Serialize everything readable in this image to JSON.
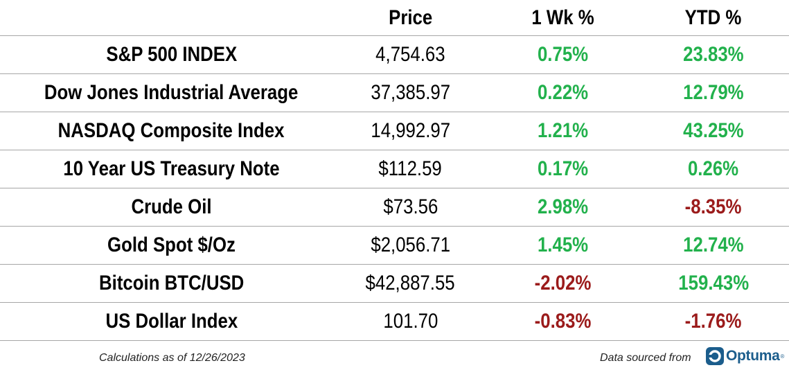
{
  "columns": {
    "price": "Price",
    "wk": "1 Wk %",
    "ytd": "YTD %"
  },
  "rows": [
    {
      "name": "S&P 500 INDEX",
      "price": "4,754.63",
      "wk": "0.75%",
      "ytd": "23.83%",
      "wk_dir": "pos",
      "ytd_dir": "pos"
    },
    {
      "name": "Dow Jones Industrial Average",
      "price": "37,385.97",
      "wk": "0.22%",
      "ytd": "12.79%",
      "wk_dir": "pos",
      "ytd_dir": "pos"
    },
    {
      "name": "NASDAQ Composite Index",
      "price": "14,992.97",
      "wk": "1.21%",
      "ytd": "43.25%",
      "wk_dir": "pos",
      "ytd_dir": "pos"
    },
    {
      "name": "10 Year US Treasury Note",
      "price": "$112.59",
      "wk": "0.17%",
      "ytd": "0.26%",
      "wk_dir": "pos",
      "ytd_dir": "pos"
    },
    {
      "name": "Crude Oil",
      "price": "$73.56",
      "wk": "2.98%",
      "ytd": "-8.35%",
      "wk_dir": "pos",
      "ytd_dir": "neg"
    },
    {
      "name": "Gold Spot $/Oz",
      "price": "$2,056.71",
      "wk": "1.45%",
      "ytd": "12.74%",
      "wk_dir": "pos",
      "ytd_dir": "pos"
    },
    {
      "name": "Bitcoin BTC/USD",
      "price": "$42,887.55",
      "wk": "-2.02%",
      "ytd": "159.43%",
      "wk_dir": "neg",
      "ytd_dir": "pos"
    },
    {
      "name": "US Dollar Index",
      "price": "101.70",
      "wk": "-0.83%",
      "ytd": "-1.76%",
      "wk_dir": "neg",
      "ytd_dir": "neg"
    }
  ],
  "colors": {
    "positive": "#22b14c",
    "negative": "#9b1b1b",
    "brand": "#1b5d8c"
  },
  "footer": {
    "calc_note": "Calculations as of 12/26/2023",
    "source_note": "Data sourced from",
    "logo_text": "Optuma",
    "logo_icon": "optuma-logo-icon"
  }
}
